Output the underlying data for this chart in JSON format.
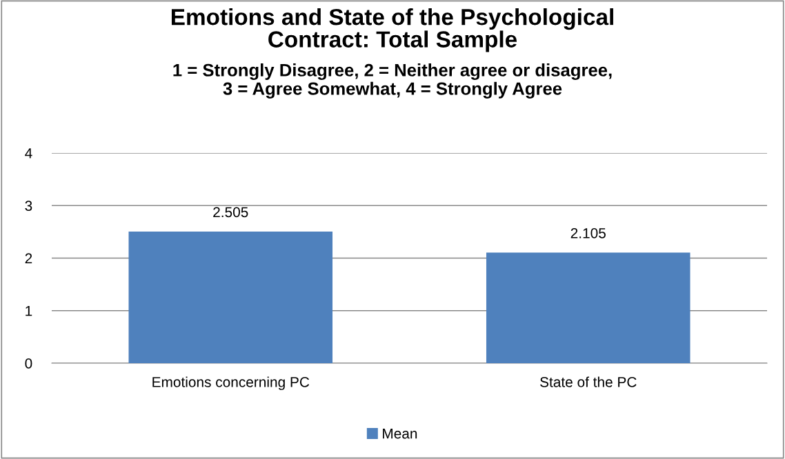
{
  "chart_data": {
    "type": "bar",
    "title": "Emotions and State of the Psychological\nContract: Total Sample",
    "subtitle": "1 = Strongly Disagree, 2 = Neither agree or disagree,\n3 = Agree Somewhat, 4 = Strongly Agree",
    "categories": [
      "Emotions concerning PC",
      "State of the PC"
    ],
    "series": [
      {
        "name": "Mean",
        "color": "#4f81bd",
        "values": [
          2.505,
          2.105
        ]
      }
    ],
    "ylim": [
      0,
      4
    ],
    "yticks": [
      0,
      1,
      2,
      3,
      4
    ],
    "grid": "y",
    "legend": "bottom",
    "data_labels": true
  }
}
